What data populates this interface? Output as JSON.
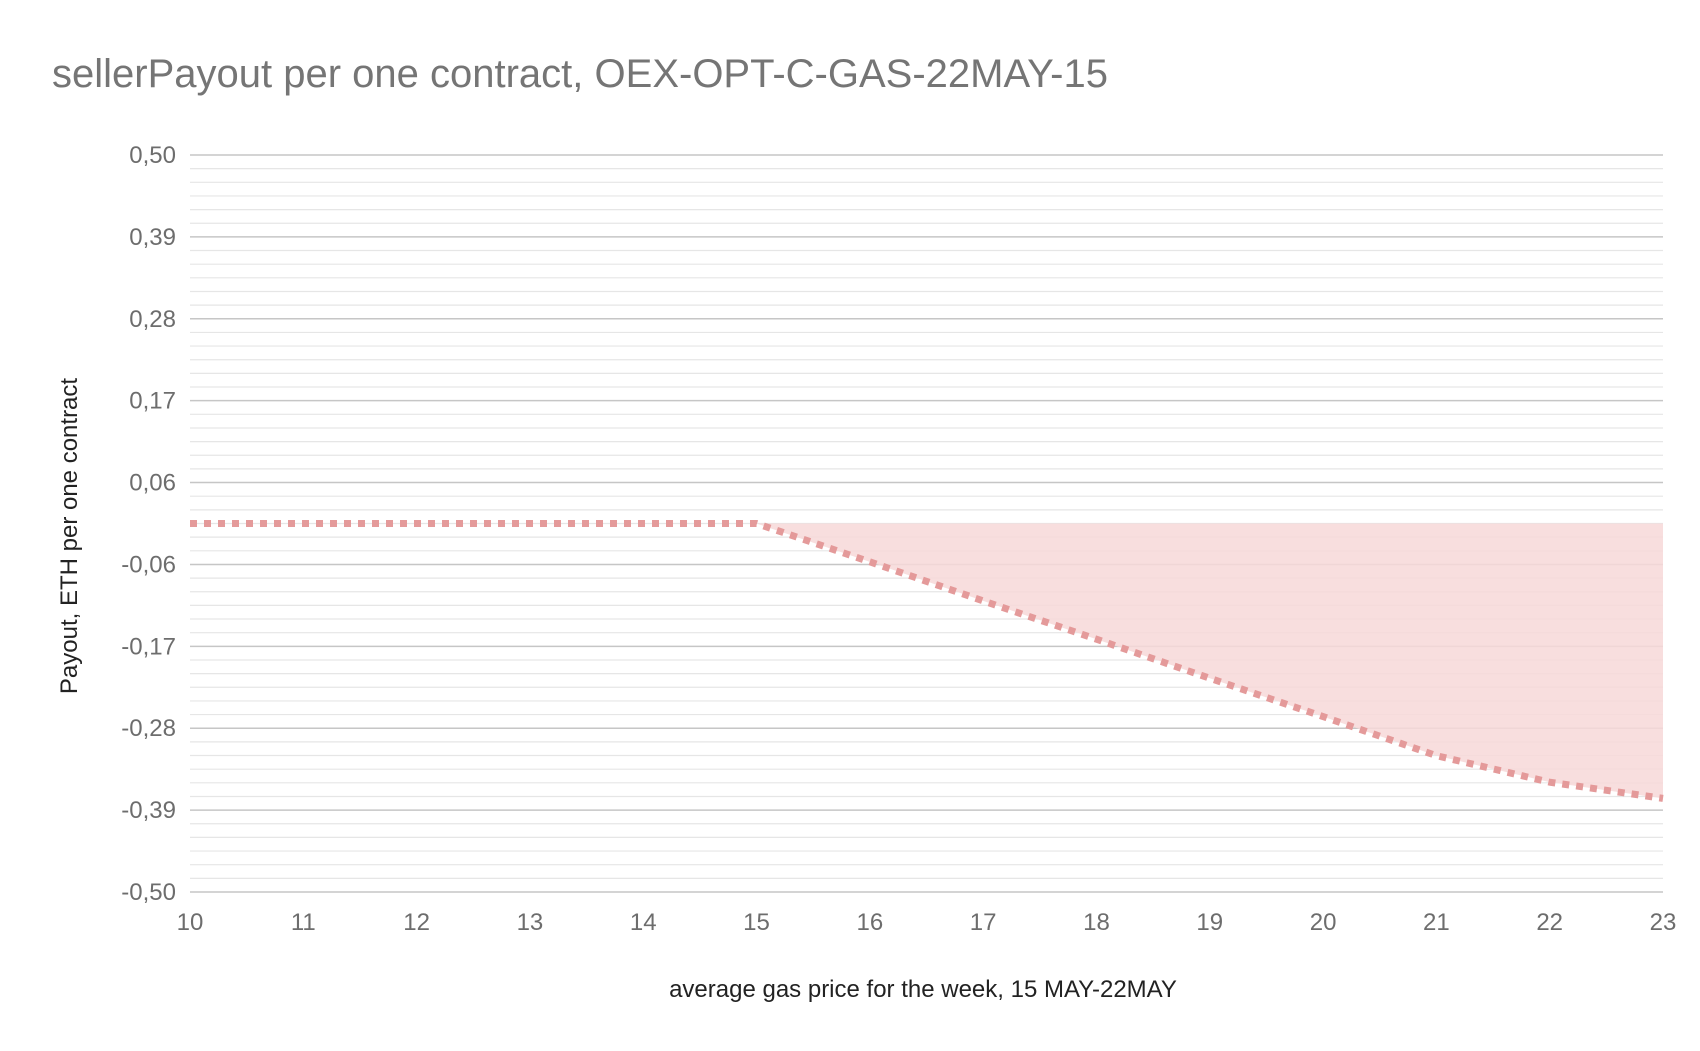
{
  "chart_data": {
    "type": "area",
    "title": "sellerPayout per one contract, OEX-OPT-C-GAS-22MAY-15",
    "xlabel": "average gas price for the week, 15 MAY-22MAY",
    "ylabel": "Payout, ETH per one contract",
    "xlim": [
      10,
      23
    ],
    "ylim": [
      -0.5,
      0.5
    ],
    "x_ticks": [
      "10",
      "11",
      "12",
      "13",
      "14",
      "15",
      "16",
      "17",
      "18",
      "19",
      "20",
      "21",
      "22",
      "23"
    ],
    "y_ticks": [
      "0,50",
      "0,39",
      "0,28",
      "0,17",
      "0,06",
      "-0,06",
      "-0,17",
      "-0,28",
      "-0,39",
      "-0,50"
    ],
    "grid": true,
    "minor_gridlines_per_major": 5,
    "series": [
      {
        "style": "dotted-line",
        "color": "#e49a9a",
        "x": [
          10,
          11,
          12,
          13,
          14,
          15,
          16,
          17,
          18,
          19,
          20,
          21,
          22,
          23
        ],
        "y": [
          0,
          0,
          0,
          0,
          0,
          0,
          -0.052,
          -0.105,
          -0.157,
          -0.21,
          -0.262,
          -0.315,
          -0.351,
          -0.373
        ]
      }
    ],
    "fill": {
      "between": "series and y=0",
      "x_from": 15,
      "x_to": 23,
      "color": "#f7d8d8"
    }
  }
}
